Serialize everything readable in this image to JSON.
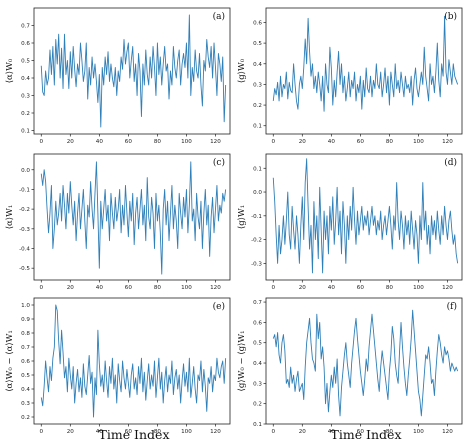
{
  "figure": {
    "xlabel": "Time Index"
  },
  "chart_data": [
    {
      "type": "line",
      "panel_label": "(a)",
      "ylabel": "⟨α⟩W₀",
      "xlim": [
        -5,
        130
      ],
      "ylim": [
        0.08,
        0.8
      ],
      "xticks": [
        "0",
        "20",
        "40",
        "60",
        "80",
        "100",
        "120"
      ],
      "yticks": [
        "0.1",
        "0.2",
        "0.3",
        "0.4",
        "0.5",
        "0.6",
        "0.7"
      ],
      "values": [
        0.47,
        0.32,
        0.3,
        0.44,
        0.36,
        0.4,
        0.56,
        0.42,
        0.58,
        0.36,
        0.62,
        0.48,
        0.65,
        0.4,
        0.57,
        0.34,
        0.65,
        0.42,
        0.5,
        0.34,
        0.55,
        0.4,
        0.58,
        0.45,
        0.35,
        0.48,
        0.42,
        0.6,
        0.5,
        0.38,
        0.44,
        0.6,
        0.28,
        0.46,
        0.36,
        0.52,
        0.4,
        0.48,
        0.38,
        0.26,
        0.42,
        0.12,
        0.46,
        0.36,
        0.52,
        0.42,
        0.55,
        0.38,
        0.48,
        0.4,
        0.35,
        0.46,
        0.3,
        0.44,
        0.38,
        0.52,
        0.45,
        0.62,
        0.48,
        0.55,
        0.6,
        0.4,
        0.5,
        0.58,
        0.38,
        0.48,
        0.3,
        0.54,
        0.44,
        0.18,
        0.48,
        0.36,
        0.56,
        0.42,
        0.36,
        0.52,
        0.4,
        0.58,
        0.46,
        0.3,
        0.6,
        0.42,
        0.52,
        0.36,
        0.48,
        0.58,
        0.44,
        0.48,
        0.28,
        0.44,
        0.36,
        0.58,
        0.46,
        0.4,
        0.5,
        0.56,
        0.36,
        0.48,
        0.54,
        0.46,
        0.6,
        0.4,
        0.76,
        0.3,
        0.46,
        0.38,
        0.56,
        0.44,
        0.4,
        0.54,
        0.36,
        0.24,
        0.5,
        0.44,
        0.62,
        0.52,
        0.46,
        0.58,
        0.4,
        0.6,
        0.46,
        0.3,
        0.54,
        0.48,
        0.38,
        0.52,
        0.15,
        0.36
      ]
    },
    {
      "type": "line",
      "panel_label": "(b)",
      "ylabel": "⟨g⟩W₀",
      "xlim": [
        -5,
        130
      ],
      "ylim": [
        0.06,
        0.67
      ],
      "xticks": [
        "0",
        "20",
        "40",
        "60",
        "80",
        "100",
        "120"
      ],
      "yticks": [
        "0.1",
        "0.2",
        "0.3",
        "0.4",
        "0.5",
        "0.6"
      ],
      "values": [
        0.22,
        0.28,
        0.25,
        0.31,
        0.22,
        0.34,
        0.24,
        0.3,
        0.28,
        0.36,
        0.23,
        0.31,
        0.27,
        0.26,
        0.4,
        0.3,
        0.22,
        0.18,
        0.3,
        0.34,
        0.28,
        0.38,
        0.52,
        0.4,
        0.62,
        0.46,
        0.34,
        0.4,
        0.28,
        0.34,
        0.26,
        0.36,
        0.3,
        0.22,
        0.34,
        0.17,
        0.4,
        0.3,
        0.26,
        0.48,
        0.38,
        0.2,
        0.32,
        0.24,
        0.36,
        0.46,
        0.3,
        0.4,
        0.26,
        0.34,
        0.22,
        0.28,
        0.36,
        0.24,
        0.32,
        0.28,
        0.36,
        0.22,
        0.3,
        0.26,
        0.34,
        0.18,
        0.32,
        0.24,
        0.38,
        0.28,
        0.26,
        0.34,
        0.24,
        0.32,
        0.28,
        0.4,
        0.3,
        0.28,
        0.36,
        0.24,
        0.3,
        0.38,
        0.26,
        0.34,
        0.2,
        0.36,
        0.3,
        0.24,
        0.4,
        0.28,
        0.32,
        0.26,
        0.36,
        0.3,
        0.24,
        0.34,
        0.28,
        0.3,
        0.26,
        0.34,
        0.2,
        0.32,
        0.38,
        0.28,
        0.24,
        0.3,
        0.36,
        0.3,
        0.48,
        0.34,
        0.28,
        0.22,
        0.4,
        0.3,
        0.34,
        0.26,
        0.36,
        0.5,
        0.32,
        0.24,
        0.4,
        0.34,
        0.63,
        0.36,
        0.3,
        0.42,
        0.36,
        0.3,
        0.4,
        0.34,
        0.32,
        0.3
      ]
    },
    {
      "type": "line",
      "panel_label": "(c)",
      "ylabel": "⟨α⟩W₁",
      "xlim": [
        -5,
        130
      ],
      "ylim": [
        -0.56,
        0.08
      ],
      "xticks": [
        "0",
        "20",
        "40",
        "60",
        "80",
        "100",
        "120"
      ],
      "yticks": [
        "-0.5",
        "-0.4",
        "-0.3",
        "-0.2",
        "-0.1",
        "0.0"
      ],
      "values": [
        -0.02,
        -0.08,
        0.0,
        -0.06,
        -0.2,
        -0.32,
        -0.22,
        -0.08,
        -0.4,
        -0.3,
        -0.16,
        -0.28,
        -0.22,
        -0.12,
        -0.26,
        -0.08,
        -0.18,
        -0.3,
        -0.12,
        -0.22,
        -0.06,
        -0.18,
        -0.28,
        -0.16,
        -0.36,
        -0.22,
        -0.12,
        -0.3,
        -0.2,
        -0.1,
        -0.26,
        -0.4,
        -0.18,
        -0.24,
        -0.06,
        -0.2,
        -0.3,
        -0.12,
        0.04,
        -0.22,
        -0.5,
        -0.16,
        -0.3,
        -0.2,
        -0.1,
        -0.26,
        -0.18,
        -0.36,
        -0.12,
        -0.22,
        -0.3,
        -0.14,
        -0.26,
        -0.2,
        -0.1,
        -0.32,
        -0.18,
        -0.28,
        -0.08,
        -0.22,
        -0.34,
        -0.16,
        -0.26,
        -0.12,
        -0.38,
        -0.22,
        -0.14,
        -0.3,
        -0.2,
        -0.1,
        -0.28,
        -0.18,
        -0.36,
        -0.04,
        -0.24,
        -0.3,
        -0.14,
        -0.22,
        -0.4,
        -0.12,
        -0.26,
        -0.18,
        -0.32,
        -0.53,
        -0.2,
        -0.1,
        -0.28,
        -0.16,
        -0.36,
        -0.22,
        -0.08,
        -0.3,
        -0.18,
        -0.26,
        -0.4,
        -0.12,
        -0.22,
        -0.3,
        -0.14,
        -0.24,
        -0.1,
        -0.32,
        -0.18,
        0.04,
        -0.26,
        -0.2,
        -0.36,
        -0.12,
        -0.24,
        -0.3,
        -0.16,
        -0.4,
        -0.22,
        -0.1,
        -0.28,
        -0.18,
        -0.44,
        -0.24,
        -0.14,
        -0.32,
        -0.2,
        -0.08,
        -0.26,
        -0.18,
        -0.22,
        -0.12,
        -0.16,
        -0.1
      ]
    },
    {
      "type": "line",
      "panel_label": "(d)",
      "ylabel": "⟨g⟩W₁",
      "xlim": [
        -5,
        130
      ],
      "ylim": [
        -0.37,
        0.16
      ],
      "xticks": [
        "0",
        "20",
        "40",
        "60",
        "80",
        "100",
        "120"
      ],
      "yticks": [
        "-0.3",
        "-0.2",
        "-0.1",
        "0.0",
        "0.1"
      ],
      "values": [
        0.06,
        -0.04,
        -0.18,
        -0.3,
        -0.14,
        -0.26,
        -0.2,
        -0.1,
        -0.22,
        -0.12,
        0.0,
        -0.18,
        -0.24,
        -0.06,
        -0.16,
        -0.24,
        -0.1,
        -0.18,
        -0.3,
        -0.14,
        -0.02,
        -0.2,
        0.04,
        0.14,
        -0.06,
        -0.24,
        -0.14,
        -0.34,
        -0.04,
        -0.2,
        -0.1,
        -0.28,
        0.02,
        -0.16,
        -0.34,
        -0.08,
        -0.2,
        -0.1,
        -0.26,
        -0.06,
        -0.16,
        -0.02,
        -0.22,
        -0.12,
        0.02,
        -0.18,
        -0.08,
        -0.26,
        -0.04,
        -0.14,
        -0.3,
        -0.1,
        -0.2,
        -0.06,
        -0.16,
        0.02,
        -0.12,
        -0.22,
        -0.08,
        -0.18,
        -0.12,
        -0.06,
        -0.16,
        -0.1,
        -0.14,
        -0.08,
        -0.18,
        -0.12,
        -0.06,
        -0.14,
        -0.1,
        -0.18,
        -0.12,
        -0.16,
        -0.08,
        -0.2,
        -0.14,
        -0.1,
        -0.18,
        -0.12,
        -0.06,
        -0.14,
        -0.24,
        -0.1,
        -0.16,
        0.04,
        -0.12,
        -0.2,
        -0.08,
        -0.14,
        -0.24,
        -0.1,
        -0.18,
        -0.12,
        -0.22,
        -0.08,
        -0.16,
        -0.24,
        -0.12,
        -0.18,
        -0.3,
        -0.1,
        -0.2,
        0.04,
        -0.16,
        -0.08,
        -0.22,
        -0.14,
        -0.26,
        -0.1,
        -0.18,
        -0.12,
        -0.2,
        -0.08,
        -0.16,
        -0.22,
        -0.1,
        -0.18,
        -0.06,
        -0.14,
        -0.2,
        -0.12,
        -0.08,
        -0.16,
        -0.22,
        -0.18,
        -0.26,
        -0.3
      ]
    },
    {
      "type": "line",
      "panel_label": "(e)",
      "ylabel": "⟨α⟩W₀ − ⟨α⟩W₁",
      "xlim": [
        -5,
        130
      ],
      "ylim": [
        0.15,
        1.05
      ],
      "xticks": [
        "0",
        "20",
        "40",
        "60",
        "80",
        "100",
        "120"
      ],
      "yticks": [
        "0.2",
        "0.3",
        "0.4",
        "0.5",
        "0.6",
        "0.7",
        "0.8",
        "0.9",
        "1.0"
      ],
      "values": [
        0.34,
        0.28,
        0.42,
        0.6,
        0.48,
        0.38,
        0.56,
        0.46,
        0.62,
        0.7,
        1.0,
        0.96,
        0.74,
        0.58,
        0.82,
        0.66,
        0.48,
        0.56,
        0.38,
        0.62,
        0.5,
        0.4,
        0.56,
        0.3,
        0.44,
        0.54,
        0.38,
        0.48,
        0.34,
        0.58,
        0.42,
        0.36,
        0.5,
        0.64,
        0.44,
        0.52,
        0.2,
        0.48,
        0.36,
        0.82,
        0.58,
        0.42,
        0.5,
        0.38,
        0.6,
        0.46,
        0.34,
        0.56,
        0.44,
        0.62,
        0.4,
        0.5,
        0.3,
        0.58,
        0.46,
        0.38,
        0.6,
        0.48,
        0.4,
        0.54,
        0.44,
        0.34,
        0.5,
        0.58,
        0.4,
        0.48,
        0.36,
        0.56,
        0.44,
        0.62,
        0.38,
        0.52,
        0.32,
        0.46,
        0.58,
        0.4,
        0.5,
        0.42,
        0.6,
        0.34,
        0.48,
        0.62,
        0.4,
        0.52,
        0.3,
        0.46,
        0.56,
        0.38,
        0.5,
        0.44,
        0.6,
        0.36,
        0.48,
        0.54,
        0.4,
        0.5,
        0.3,
        0.46,
        0.58,
        0.42,
        0.52,
        0.38,
        0.62,
        0.34,
        0.44,
        0.56,
        0.4,
        0.3,
        0.5,
        0.46,
        0.6,
        0.38,
        0.54,
        0.42,
        0.24,
        0.48,
        0.44,
        0.56,
        0.38,
        0.5,
        0.46,
        0.62,
        0.52,
        0.48,
        0.56,
        0.6,
        0.44,
        0.62
      ]
    },
    {
      "type": "line",
      "panel_label": "(f)",
      "ylabel": "⟨g⟩W₀ − ⟨g⟩W₁",
      "xlim": [
        -5,
        130
      ],
      "ylim": [
        0.1,
        0.72
      ],
      "xticks": [
        "0",
        "20",
        "40",
        "60",
        "80",
        "100",
        "120"
      ],
      "yticks": [
        "0.1",
        "0.2",
        "0.3",
        "0.4",
        "0.5",
        "0.6",
        "0.7"
      ],
      "values": [
        0.52,
        0.54,
        0.48,
        0.55,
        0.44,
        0.4,
        0.5,
        0.54,
        0.46,
        0.3,
        0.32,
        0.28,
        0.38,
        0.3,
        0.34,
        0.26,
        0.32,
        0.36,
        0.26,
        0.28,
        0.3,
        0.22,
        0.38,
        0.5,
        0.56,
        0.62,
        0.5,
        0.42,
        0.4,
        0.36,
        0.64,
        0.52,
        0.6,
        0.42,
        0.48,
        0.38,
        0.2,
        0.3,
        0.16,
        0.26,
        0.34,
        0.28,
        0.38,
        0.3,
        0.42,
        0.24,
        0.14,
        0.28,
        0.36,
        0.44,
        0.5,
        0.4,
        0.34,
        0.28,
        0.4,
        0.48,
        0.56,
        0.62,
        0.52,
        0.44,
        0.36,
        0.3,
        0.24,
        0.32,
        0.42,
        0.36,
        0.48,
        0.56,
        0.64,
        0.56,
        0.48,
        0.4,
        0.32,
        0.26,
        0.38,
        0.46,
        0.4,
        0.34,
        0.28,
        0.22,
        0.36,
        0.44,
        0.58,
        0.52,
        0.4,
        0.34,
        0.3,
        0.46,
        0.6,
        0.48,
        0.38,
        0.3,
        0.24,
        0.34,
        0.42,
        0.52,
        0.66,
        0.56,
        0.46,
        0.36,
        0.26,
        0.22,
        0.14,
        0.24,
        0.34,
        0.44,
        0.42,
        0.48,
        0.4,
        0.3,
        0.32,
        0.24,
        0.36,
        0.46,
        0.54,
        0.5,
        0.44,
        0.4,
        0.48,
        0.44,
        0.46,
        0.42,
        0.36,
        0.4,
        0.38,
        0.36,
        0.38,
        0.36
      ]
    }
  ]
}
